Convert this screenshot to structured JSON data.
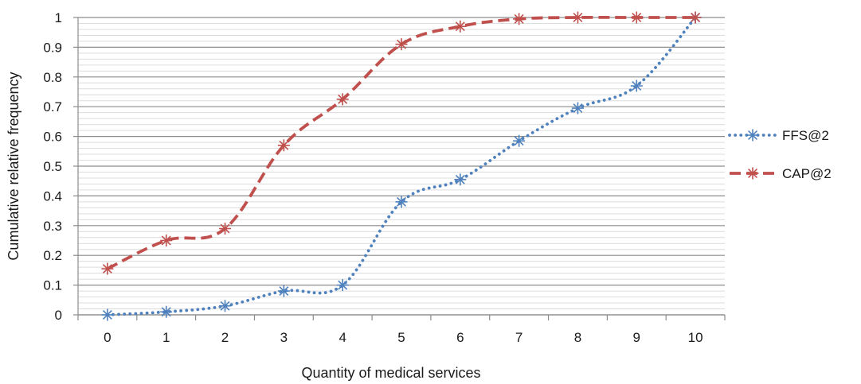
{
  "chart_data": {
    "type": "line",
    "xlabel": "Quantity of medical services",
    "ylabel": "Cumulative relative frequency",
    "categories": [
      "0",
      "1",
      "2",
      "3",
      "4",
      "5",
      "6",
      "7",
      "8",
      "9",
      "10"
    ],
    "ylim": [
      0,
      1
    ],
    "yticks": [
      "0",
      "0.1",
      "0.2",
      "0.3",
      "0.4",
      "0.5",
      "0.6",
      "0.7",
      "0.8",
      "0.9",
      "1"
    ],
    "grid": "major and minor horizontal",
    "legend_position": "right",
    "series": [
      {
        "name": "FFS@2",
        "color": "#4f81bd",
        "line_style": "dotted",
        "marker": "asterisk",
        "values": [
          0.0,
          0.01,
          0.03,
          0.08,
          0.1,
          0.38,
          0.455,
          0.585,
          0.695,
          0.77,
          1.0
        ]
      },
      {
        "name": "CAP@2",
        "color": "#c0504d",
        "line_style": "dashed",
        "marker": "asterisk",
        "values": [
          0.155,
          0.25,
          0.29,
          0.57,
          0.725,
          0.91,
          0.97,
          0.995,
          1.0,
          1.0,
          1.0
        ]
      }
    ]
  }
}
